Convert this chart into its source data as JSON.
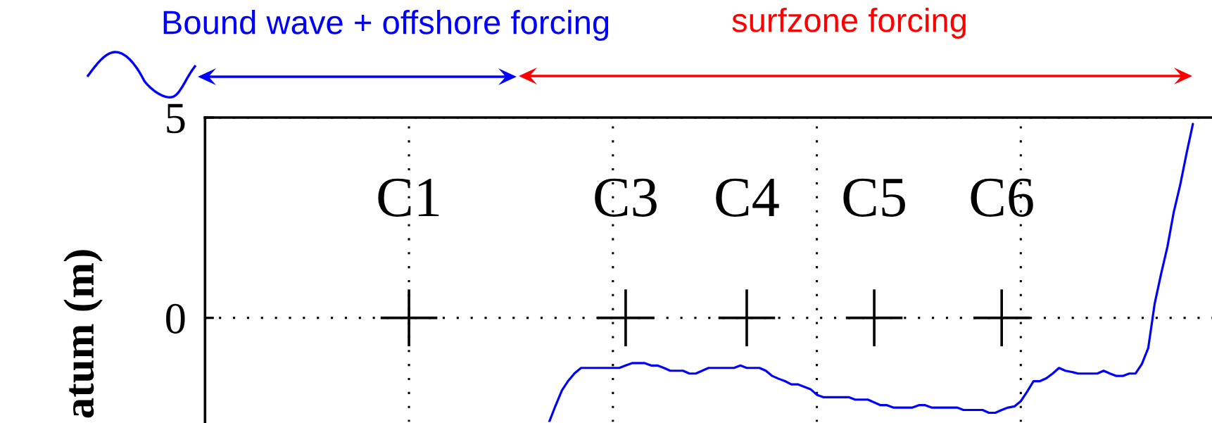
{
  "chart_data": {
    "type": "line",
    "ylabel": "atum (m)",
    "annotations": [
      "Bound wave + offshore forcing",
      "surfzone forcing"
    ],
    "categories": [
      null,
      null,
      null,
      null,
      null,
      null,
      null,
      null,
      null,
      null,
      null,
      null,
      null,
      null,
      null,
      null,
      null,
      null,
      null,
      null,
      null,
      null,
      null,
      null,
      null,
      null,
      null,
      null,
      null,
      null,
      null,
      null,
      null,
      null,
      null,
      null,
      null,
      null,
      null,
      null,
      null,
      null,
      null,
      null,
      null,
      null,
      null,
      null,
      null,
      null,
      null,
      null,
      null,
      null,
      null,
      null,
      null,
      null,
      null,
      null,
      null,
      null,
      null,
      null,
      null,
      null,
      null,
      null,
      null,
      null,
      null,
      null,
      null,
      null,
      null,
      null,
      null,
      null,
      null,
      null,
      null,
      null,
      null,
      null,
      null,
      null,
      null,
      null,
      null,
      null,
      null,
      null,
      null,
      null,
      null,
      null,
      null,
      null,
      null,
      null,
      null,
      null,
      null,
      null,
      null,
      null,
      null,
      null,
      null,
      null,
      null,
      null,
      null,
      null,
      null,
      null,
      null,
      null,
      null,
      null,
      null,
      null,
      null,
      null,
      null,
      null,
      null,
      null,
      null,
      null,
      null,
      null,
      null,
      null,
      null,
      null,
      null,
      null,
      null,
      null,
      null,
      null,
      null,
      null,
      null,
      null,
      null,
      null,
      null,
      null,
      null,
      null,
      null,
      null,
      null,
      null,
      null,
      null,
      null
    ],
    "series": [
      {
        "color": "#0000ff",
        "values": [
          null,
          null,
          null,
          null,
          null,
          null,
          null,
          null,
          null,
          null,
          null,
          null,
          null,
          null,
          null,
          null,
          null,
          null,
          null,
          null,
          null,
          null,
          null,
          null,
          null,
          null,
          null,
          null,
          null,
          null,
          null,
          null,
          null,
          null,
          null,
          null,
          null,
          null,
          null,
          null,
          null,
          null,
          null,
          null,
          null,
          null,
          null,
          null,
          null,
          null,
          null,
          null,
          null,
          null,
          -2.6,
          -2.19,
          -1.81,
          -1.57,
          -1.38,
          -1.25,
          -1.25,
          -1.25,
          -1.25,
          -1.25,
          -1.25,
          -1.25,
          -1.19,
          -1.13,
          -1.13,
          -1.13,
          -1.19,
          -1.19,
          -1.25,
          -1.32,
          -1.32,
          -1.32,
          -1.39,
          -1.39,
          -1.32,
          -1.25,
          -1.25,
          -1.25,
          -1.25,
          -1.25,
          -1.19,
          -1.25,
          -1.25,
          -1.25,
          -1.32,
          -1.45,
          -1.52,
          -1.58,
          -1.66,
          -1.66,
          -1.72,
          -1.78,
          -1.92,
          -1.98,
          -1.98,
          -1.98,
          -1.98,
          -1.98,
          -2.04,
          -2.04,
          -2.04,
          -2.11,
          -2.18,
          -2.18,
          -2.24,
          -2.24,
          -2.24,
          -2.24,
          -2.18,
          -2.18,
          -2.24,
          -2.24,
          -2.24,
          -2.24,
          -2.24,
          -2.3,
          -2.3,
          -2.3,
          -2.3,
          -2.37,
          -2.37,
          -2.3,
          -2.24,
          -2.21,
          -2.08,
          -1.84,
          -1.58,
          -1.58,
          -1.51,
          -1.39,
          -1.25,
          -1.32,
          -1.35,
          -1.39,
          -1.39,
          -1.39,
          -1.39,
          -1.32,
          -1.39,
          -1.45,
          -1.45,
          -1.39,
          -1.39,
          -1.15,
          -0.75,
          0.35,
          1.09,
          1.77,
          2.64,
          3.31,
          4.1,
          4.84,
          null,
          null,
          null
        ]
      },
      {
        "name": "C1",
        "type": "scatter",
        "marker": "cross",
        "color": "#000000",
        "values": [
          null,
          null,
          null,
          null,
          null,
          null,
          null,
          null,
          null,
          null,
          null,
          null,
          null,
          null,
          null,
          null,
          null,
          null,
          null,
          null,
          null,
          null,
          null,
          null,
          null,
          null,
          null,
          null,
          null,
          null,
          null,
          null,
          0,
          null,
          null,
          null,
          null,
          null,
          null,
          null,
          null,
          null,
          null,
          null,
          null,
          null,
          null,
          null,
          null,
          null,
          null,
          null,
          null,
          null,
          null,
          null,
          null,
          null,
          null,
          null,
          null,
          null,
          null,
          null,
          null,
          null,
          null,
          null,
          null,
          null,
          null,
          null,
          null,
          null,
          null,
          null,
          null,
          null,
          null,
          null,
          null,
          null,
          null,
          null,
          null,
          null,
          null,
          null,
          null,
          null,
          null,
          null,
          null,
          null,
          null,
          null,
          null,
          null,
          null,
          null,
          null,
          null,
          null,
          null,
          null,
          null,
          null,
          null,
          null,
          null,
          null,
          null,
          null,
          null,
          null,
          null,
          null,
          null,
          null,
          null,
          null,
          null,
          null,
          null,
          null,
          null,
          null,
          null,
          null,
          null,
          null,
          null,
          null,
          null,
          null,
          null,
          null,
          null,
          null,
          null,
          null,
          null,
          null,
          null,
          null,
          null,
          null,
          null,
          null,
          null,
          null,
          null,
          null,
          null,
          null,
          null,
          null,
          null,
          null
        ]
      },
      {
        "name": "C3",
        "type": "scatter",
        "marker": "cross",
        "color": "#000000",
        "values": [
          null,
          null,
          null,
          null,
          null,
          null,
          null,
          null,
          null,
          null,
          null,
          null,
          null,
          null,
          null,
          null,
          null,
          null,
          null,
          null,
          null,
          null,
          null,
          null,
          null,
          null,
          null,
          null,
          null,
          null,
          null,
          null,
          null,
          null,
          null,
          null,
          null,
          null,
          null,
          null,
          null,
          null,
          null,
          null,
          null,
          null,
          null,
          null,
          null,
          null,
          null,
          null,
          null,
          null,
          null,
          null,
          null,
          null,
          null,
          null,
          null,
          null,
          null,
          null,
          null,
          null,
          0,
          null,
          null,
          null,
          null,
          null,
          null,
          null,
          null,
          null,
          null,
          null,
          null,
          null,
          null,
          null,
          null,
          null,
          null,
          null,
          null,
          null,
          null,
          null,
          null,
          null,
          null,
          null,
          null,
          null,
          null,
          null,
          null,
          null,
          null,
          null,
          null,
          null,
          null,
          null,
          null,
          null,
          null,
          null,
          null,
          null,
          null,
          null,
          null,
          null,
          null,
          null,
          null,
          null,
          null,
          null,
          null,
          null,
          null,
          null,
          null,
          null,
          null,
          null,
          null,
          null,
          null,
          null,
          null,
          null,
          null,
          null,
          null,
          null,
          null,
          null,
          null,
          null,
          null,
          null,
          null,
          null,
          null,
          null,
          null,
          null,
          null,
          null,
          null,
          null,
          null,
          null,
          null
        ]
      },
      {
        "name": "C4",
        "type": "scatter",
        "marker": "cross",
        "color": "#000000",
        "values": [
          null,
          null,
          null,
          null,
          null,
          null,
          null,
          null,
          null,
          null,
          null,
          null,
          null,
          null,
          null,
          null,
          null,
          null,
          null,
          null,
          null,
          null,
          null,
          null,
          null,
          null,
          null,
          null,
          null,
          null,
          null,
          null,
          null,
          null,
          null,
          null,
          null,
          null,
          null,
          null,
          null,
          null,
          null,
          null,
          null,
          null,
          null,
          null,
          null,
          null,
          null,
          null,
          null,
          null,
          null,
          null,
          null,
          null,
          null,
          null,
          null,
          null,
          null,
          null,
          null,
          null,
          null,
          null,
          null,
          null,
          null,
          null,
          null,
          null,
          null,
          null,
          null,
          null,
          null,
          null,
          null,
          null,
          null,
          null,
          null,
          0,
          null,
          null,
          null,
          null,
          null,
          null,
          null,
          null,
          null,
          null,
          null,
          null,
          null,
          null,
          null,
          null,
          null,
          null,
          null,
          null,
          null,
          null,
          null,
          null,
          null,
          null,
          null,
          null,
          null,
          null,
          null,
          null,
          null,
          null,
          null,
          null,
          null,
          null,
          null,
          null,
          null,
          null,
          null,
          null,
          null,
          null,
          null,
          null,
          null,
          null,
          null,
          null,
          null,
          null,
          null,
          null,
          null,
          null,
          null,
          null,
          null,
          null,
          null,
          null,
          null,
          null,
          null,
          null,
          null,
          null,
          null,
          null,
          null
        ]
      },
      {
        "name": "C5",
        "type": "scatter",
        "marker": "cross",
        "color": "#000000",
        "values": [
          null,
          null,
          null,
          null,
          null,
          null,
          null,
          null,
          null,
          null,
          null,
          null,
          null,
          null,
          null,
          null,
          null,
          null,
          null,
          null,
          null,
          null,
          null,
          null,
          null,
          null,
          null,
          null,
          null,
          null,
          null,
          null,
          null,
          null,
          null,
          null,
          null,
          null,
          null,
          null,
          null,
          null,
          null,
          null,
          null,
          null,
          null,
          null,
          null,
          null,
          null,
          null,
          null,
          null,
          null,
          null,
          null,
          null,
          null,
          null,
          null,
          null,
          null,
          null,
          null,
          null,
          null,
          null,
          null,
          null,
          null,
          null,
          null,
          null,
          null,
          null,
          null,
          null,
          null,
          null,
          null,
          null,
          null,
          null,
          null,
          null,
          null,
          null,
          null,
          null,
          null,
          null,
          null,
          null,
          null,
          null,
          null,
          null,
          null,
          null,
          null,
          null,
          null,
          null,
          null,
          0,
          null,
          null,
          null,
          null,
          null,
          null,
          null,
          null,
          null,
          null,
          null,
          null,
          null,
          null,
          null,
          null,
          null,
          null,
          null,
          null,
          null,
          null,
          null,
          null,
          null,
          null,
          null,
          null,
          null,
          null,
          null,
          null,
          null,
          null,
          null,
          null,
          null,
          null,
          null,
          null,
          null,
          null,
          null,
          null,
          null,
          null,
          null,
          null,
          null,
          null,
          null,
          null,
          null
        ]
      },
      {
        "name": "C6",
        "type": "scatter",
        "marker": "cross",
        "color": "#000000",
        "values": [
          null,
          null,
          null,
          null,
          null,
          null,
          null,
          null,
          null,
          null,
          null,
          null,
          null,
          null,
          null,
          null,
          null,
          null,
          null,
          null,
          null,
          null,
          null,
          null,
          null,
          null,
          null,
          null,
          null,
          null,
          null,
          null,
          null,
          null,
          null,
          null,
          null,
          null,
          null,
          null,
          null,
          null,
          null,
          null,
          null,
          null,
          null,
          null,
          null,
          null,
          null,
          null,
          null,
          null,
          null,
          null,
          null,
          null,
          null,
          null,
          null,
          null,
          null,
          null,
          null,
          null,
          null,
          null,
          null,
          null,
          null,
          null,
          null,
          null,
          null,
          null,
          null,
          null,
          null,
          null,
          null,
          null,
          null,
          null,
          null,
          null,
          null,
          null,
          null,
          null,
          null,
          null,
          null,
          null,
          null,
          null,
          null,
          null,
          null,
          null,
          null,
          null,
          null,
          null,
          null,
          null,
          null,
          null,
          null,
          null,
          null,
          null,
          null,
          null,
          null,
          null,
          null,
          null,
          null,
          null,
          null,
          null,
          null,
          null,
          null,
          0,
          null,
          null,
          null,
          null,
          null,
          null,
          null,
          null,
          null,
          null,
          null,
          null,
          null,
          null,
          null,
          null,
          null,
          null,
          null,
          null,
          null,
          null,
          null,
          null,
          null,
          null,
          null,
          null,
          null,
          null,
          null,
          null,
          null
        ]
      }
    ],
    "ylim": [
      -2.6,
      5
    ],
    "yticks": [
      0,
      5
    ],
    "grid": true
  }
}
